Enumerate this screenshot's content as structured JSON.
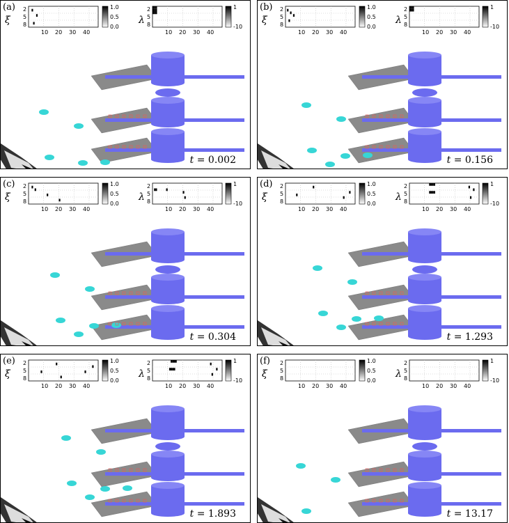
{
  "panels": [
    {
      "label": "(a)",
      "t": "0.002",
      "xi_label": "ξ",
      "lambda_label": "λ",
      "xi_cbar": [
        "1.0",
        "0.5",
        "0.0"
      ],
      "lambda_cbar": [
        "1",
        "-10"
      ],
      "rows": [
        "2",
        "5",
        "8"
      ],
      "cols": [
        "10",
        "20",
        "30",
        "40"
      ]
    },
    {
      "label": "(b)",
      "t": "0.156",
      "xi_label": "ξ",
      "lambda_label": "λ",
      "xi_cbar": [
        "1.0",
        "0.5",
        "0.0"
      ],
      "lambda_cbar": [
        "1",
        "-10"
      ],
      "rows": [
        "2",
        "5",
        "8"
      ],
      "cols": [
        "10",
        "20",
        "30",
        "40"
      ]
    },
    {
      "label": "(c)",
      "t": "0.304",
      "xi_label": "ξ",
      "lambda_label": "λ",
      "xi_cbar": [
        "1.0",
        "0.5",
        "0.0"
      ],
      "lambda_cbar": [
        "1",
        "-10"
      ],
      "rows": [
        "2",
        "5",
        "8"
      ],
      "cols": [
        "10",
        "20",
        "30",
        "40"
      ]
    },
    {
      "label": "(d)",
      "t": "1.293",
      "xi_label": "ξ",
      "lambda_label": "λ",
      "xi_cbar": [
        "1.0",
        "0.5",
        "0.0"
      ],
      "lambda_cbar": [
        "1",
        "-10"
      ],
      "rows": [
        "2",
        "5",
        "8"
      ],
      "cols": [
        "10",
        "20",
        "30",
        "40"
      ]
    },
    {
      "label": "(e)",
      "t": "1.893",
      "xi_label": "ξ",
      "lambda_label": "λ",
      "xi_cbar": [
        "1.0",
        "0.5",
        "0.0"
      ],
      "lambda_cbar": [
        "1",
        "-10"
      ],
      "rows": [
        "2",
        "5",
        "8"
      ],
      "cols": [
        "10",
        "20",
        "30",
        "40"
      ]
    },
    {
      "label": "(f)",
      "t": "13.17",
      "xi_label": "ξ",
      "lambda_label": "λ",
      "xi_cbar": [
        "1.0",
        "0.5",
        "0.0"
      ],
      "lambda_cbar": [
        "1",
        "-10"
      ],
      "rows": [
        "2",
        "5",
        "8"
      ],
      "cols": [
        "10",
        "20",
        "30",
        "40"
      ]
    }
  ],
  "t_prefix": "t = ",
  "colors": {
    "station": "#6b6bef",
    "panel_grey": "#8a8a8a",
    "drone": "#37d6d6",
    "target_box": "#e06060",
    "green": "#47c447",
    "cross": "#e03030"
  }
}
